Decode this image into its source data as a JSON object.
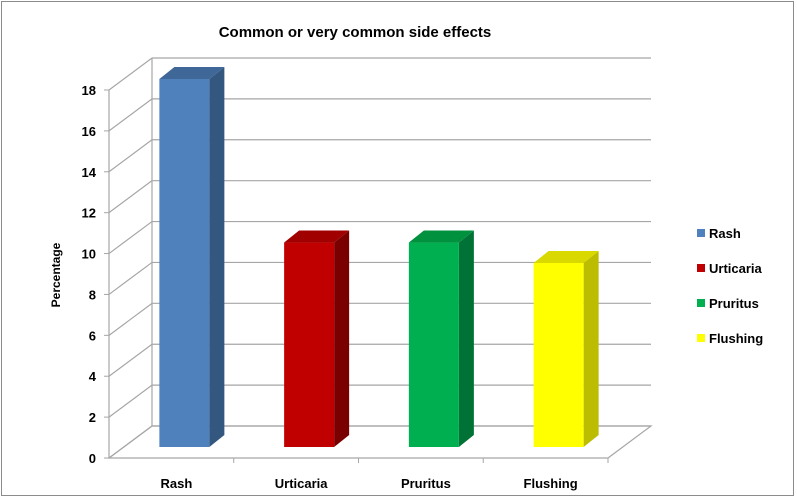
{
  "chart_data": {
    "type": "bar",
    "title": "Common or very common side effects",
    "xlabel": "",
    "ylabel": "Percentage",
    "categories": [
      "Rash",
      "Urticaria",
      "Pruritus",
      "Flushing"
    ],
    "values": [
      18,
      10,
      10,
      9
    ],
    "ylim": [
      0,
      18
    ],
    "yticks": [
      0,
      2,
      4,
      6,
      8,
      10,
      12,
      14,
      16,
      18
    ],
    "grid": true,
    "legend_position": "right",
    "style": "3d",
    "legend": [
      "Rash",
      "Urticaria",
      "Pruritus",
      "Flushing"
    ],
    "colors": [
      "#4f81bd",
      "#c00000",
      "#00b050",
      "#ffff00"
    ],
    "side_colors": [
      "#34577f",
      "#7a0000",
      "#007236",
      "#bcbc00"
    ],
    "top_colors": [
      "#3f6797",
      "#a00000",
      "#00913f",
      "#d9d900"
    ]
  }
}
